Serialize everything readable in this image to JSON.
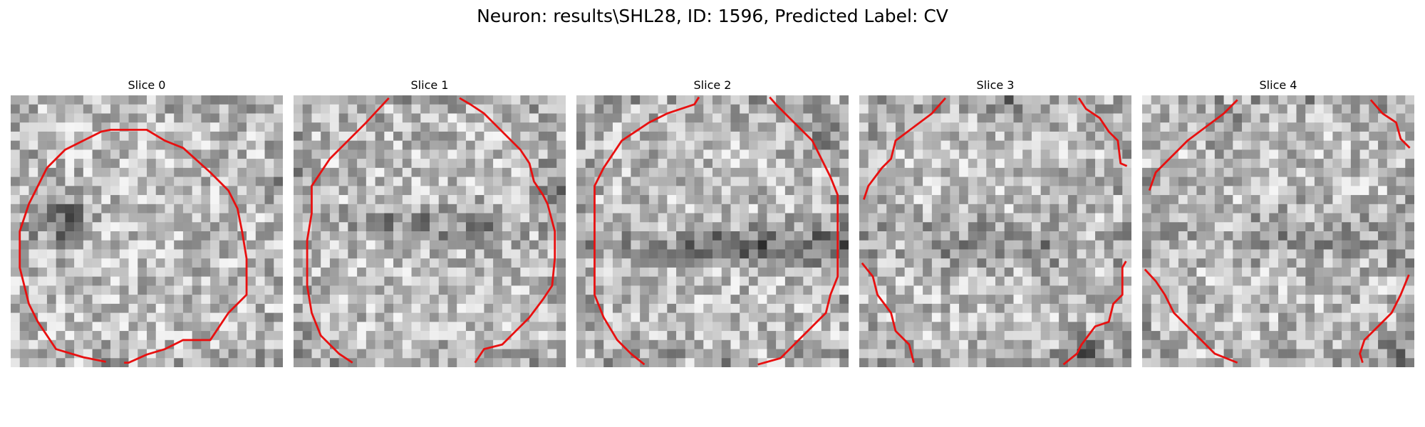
{
  "figure": {
    "title": "Neuron: results\\SHL28, ID: 1596, Predicted Label: CV"
  },
  "slices": [
    {
      "title": "Slice 0"
    },
    {
      "title": "Slice 1"
    },
    {
      "title": "Slice 2"
    },
    {
      "title": "Slice 3"
    },
    {
      "title": "Slice 4"
    }
  ],
  "colors": {
    "contour": "#e81010",
    "background": "#ffffff"
  }
}
